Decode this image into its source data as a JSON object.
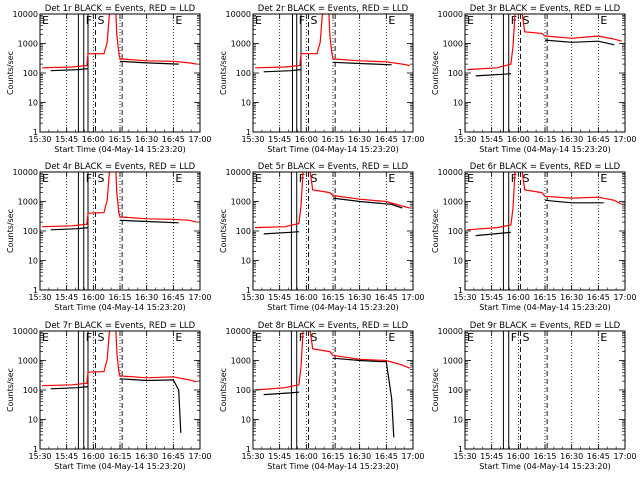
{
  "figure": {
    "x_range": [
      15.5,
      17.0
    ],
    "y_range": [
      1,
      10000
    ],
    "y_scale": "log",
    "x_ticks": [
      {
        "v": 15.5,
        "label": "15:30"
      },
      {
        "v": 15.75,
        "label": "15:45"
      },
      {
        "v": 16.0,
        "label": "16:00"
      },
      {
        "v": 16.25,
        "label": "16:15"
      },
      {
        "v": 16.5,
        "label": "16:30"
      },
      {
        "v": 16.75,
        "label": "16:45"
      },
      {
        "v": 17.0,
        "label": "17:00"
      }
    ],
    "y_ticks": [
      {
        "v": 1,
        "label": "1"
      },
      {
        "v": 10,
        "label": "10"
      },
      {
        "v": 100,
        "label": "100"
      },
      {
        "v": 1000,
        "label": "1000"
      },
      {
        "v": 10000,
        "label": "10000"
      }
    ],
    "ylabel": "Counts/sec",
    "xlabel": "Start Time (04-May-14 15:23:20)",
    "colors": {
      "events": "#000000",
      "lld": "#ff0000"
    }
  },
  "chart_data": [
    {
      "type": "line",
      "title": "Det 1r BLACK = Events, RED = LLD",
      "flags": [
        {
          "t": 15.5,
          "label": "E"
        },
        {
          "t": 15.91,
          "label": "F"
        },
        {
          "t": 16.02,
          "label": "S"
        },
        {
          "t": 16.75,
          "label": "E"
        }
      ],
      "vlines_solid": [
        15.86,
        15.91,
        15.95
      ],
      "vlines_dashed": [
        16.02,
        16.27
      ],
      "vlines_dotted": [
        15.75,
        16.0,
        16.25,
        16.5,
        16.75
      ],
      "series": [
        {
          "kind": "lld",
          "x": [
            15.52,
            15.8,
            15.94,
            15.95,
            16.1,
            16.13,
            16.15,
            16.18,
            16.21,
            16.22,
            16.24,
            16.25,
            16.5,
            16.75,
            16.9,
            16.97
          ],
          "y": [
            150,
            160,
            180,
            450,
            450,
            1100,
            9000,
            15000,
            15000,
            2000,
            450,
            300,
            260,
            250,
            220,
            200
          ]
        },
        {
          "kind": "events",
          "x": [
            15.6,
            15.85,
            15.95
          ],
          "y": [
            120,
            130,
            140
          ]
        },
        {
          "kind": "events",
          "x": [
            16.25,
            16.5,
            16.8
          ],
          "y": [
            250,
            220,
            200
          ]
        }
      ]
    },
    {
      "type": "line",
      "title": "Det 2r BLACK = Events, RED = LLD",
      "flags": [
        {
          "t": 15.5,
          "label": "E"
        },
        {
          "t": 15.91,
          "label": "F"
        },
        {
          "t": 16.02,
          "label": "S"
        },
        {
          "t": 16.75,
          "label": "E"
        }
      ],
      "vlines_solid": [
        15.87,
        15.91,
        15.95
      ],
      "vlines_dashed": [
        16.02,
        16.27
      ],
      "vlines_dotted": [
        15.75,
        16.0,
        16.25,
        16.5,
        16.75
      ],
      "series": [
        {
          "kind": "lld",
          "x": [
            15.52,
            15.8,
            15.94,
            15.95,
            16.1,
            16.13,
            16.15,
            16.18,
            16.21,
            16.22,
            16.24,
            16.25,
            16.5,
            16.75,
            16.9,
            16.97
          ],
          "y": [
            150,
            160,
            180,
            450,
            450,
            1100,
            9000,
            15000,
            15000,
            2000,
            450,
            300,
            260,
            240,
            200,
            180
          ]
        },
        {
          "kind": "events",
          "x": [
            15.6,
            15.85,
            15.95
          ],
          "y": [
            110,
            120,
            130
          ]
        },
        {
          "kind": "events",
          "x": [
            16.25,
            16.5,
            16.8
          ],
          "y": [
            230,
            210,
            190
          ]
        }
      ]
    },
    {
      "type": "line",
      "title": "Det 3r BLACK = Events, RED = LLD",
      "flags": [
        {
          "t": 15.5,
          "label": "E"
        },
        {
          "t": 15.91,
          "label": "F"
        },
        {
          "t": 16.02,
          "label": "S"
        },
        {
          "t": 16.75,
          "label": "E"
        }
      ],
      "vlines_solid": [
        15.86,
        15.91
      ],
      "vlines_dashed": [
        16.02,
        16.27
      ],
      "vlines_dotted": [
        15.75,
        16.0,
        16.25,
        16.5,
        16.75
      ],
      "series": [
        {
          "kind": "lld",
          "x": [
            15.52,
            15.8,
            15.93,
            15.95,
            15.97,
            16.0,
            16.03,
            16.06,
            16.22,
            16.25,
            16.5,
            16.75,
            16.9,
            16.97
          ],
          "y": [
            130,
            150,
            200,
            800,
            12000,
            15000,
            15000,
            2500,
            2200,
            1800,
            1500,
            1800,
            1400,
            1200
          ]
        },
        {
          "kind": "events",
          "x": [
            15.6,
            15.85,
            15.93
          ],
          "y": [
            80,
            90,
            95
          ]
        },
        {
          "kind": "events",
          "x": [
            16.25,
            16.5,
            16.75,
            16.9
          ],
          "y": [
            1300,
            1100,
            1200,
            900
          ]
        }
      ]
    },
    {
      "type": "line",
      "title": "Det 4r BLACK = Events, RED = LLD",
      "flags": [
        {
          "t": 15.5,
          "label": "E"
        },
        {
          "t": 15.91,
          "label": "F"
        },
        {
          "t": 16.02,
          "label": "S"
        },
        {
          "t": 16.75,
          "label": "E"
        }
      ],
      "vlines_solid": [
        15.86,
        15.91,
        15.95
      ],
      "vlines_dashed": [
        16.02,
        16.27
      ],
      "vlines_dotted": [
        15.75,
        16.0,
        16.25,
        16.5,
        16.75
      ],
      "series": [
        {
          "kind": "lld",
          "x": [
            15.52,
            15.8,
            15.94,
            15.95,
            16.1,
            16.13,
            16.15,
            16.18,
            16.21,
            16.22,
            16.24,
            16.25,
            16.5,
            16.75,
            16.9,
            16.97
          ],
          "y": [
            140,
            150,
            170,
            400,
            420,
            1100,
            9000,
            15000,
            15000,
            2000,
            400,
            300,
            260,
            250,
            230,
            200
          ]
        },
        {
          "kind": "events",
          "x": [
            15.6,
            15.85,
            15.95
          ],
          "y": [
            110,
            120,
            130
          ]
        },
        {
          "kind": "events",
          "x": [
            16.25,
            16.5,
            16.8
          ],
          "y": [
            230,
            210,
            190
          ]
        }
      ]
    },
    {
      "type": "line",
      "title": "Det 5r BLACK = Events, RED = LLD",
      "flags": [
        {
          "t": 15.5,
          "label": "E"
        },
        {
          "t": 15.91,
          "label": "F"
        },
        {
          "t": 16.02,
          "label": "S"
        },
        {
          "t": 16.75,
          "label": "E"
        }
      ],
      "vlines_solid": [
        15.86,
        15.91
      ],
      "vlines_dashed": [
        16.02,
        16.27
      ],
      "vlines_dotted": [
        15.75,
        16.0,
        16.25,
        16.5,
        16.75
      ],
      "series": [
        {
          "kind": "lld",
          "x": [
            15.52,
            15.8,
            15.93,
            15.95,
            15.97,
            16.0,
            16.03,
            16.06,
            16.22,
            16.25,
            16.5,
            16.75,
            16.9,
            16.97
          ],
          "y": [
            130,
            140,
            180,
            700,
            12000,
            15000,
            15000,
            2500,
            2000,
            1600,
            1200,
            1000,
            700,
            600
          ]
        },
        {
          "kind": "events",
          "x": [
            15.6,
            15.85,
            15.93
          ],
          "y": [
            80,
            90,
            95
          ]
        },
        {
          "kind": "events",
          "x": [
            16.25,
            16.5,
            16.8,
            16.9
          ],
          "y": [
            1300,
            1000,
            800,
            600
          ]
        }
      ]
    },
    {
      "type": "line",
      "title": "Det 6r BLACK = Events, RED = LLD",
      "flags": [
        {
          "t": 15.5,
          "label": "E"
        },
        {
          "t": 15.91,
          "label": "F"
        },
        {
          "t": 16.02,
          "label": "S"
        },
        {
          "t": 16.75,
          "label": "E"
        }
      ],
      "vlines_solid": [
        15.86,
        15.91
      ],
      "vlines_dashed": [
        16.02,
        16.27
      ],
      "vlines_dotted": [
        15.75,
        16.0,
        16.25,
        16.5,
        16.75
      ],
      "series": [
        {
          "kind": "lld",
          "x": [
            15.52,
            15.8,
            15.93,
            15.95,
            15.97,
            16.0,
            16.03,
            16.06,
            16.22,
            16.25,
            16.5,
            16.75,
            16.9,
            16.97
          ],
          "y": [
            110,
            130,
            160,
            600,
            12000,
            15000,
            15000,
            2500,
            2000,
            1500,
            1300,
            1400,
            1100,
            800
          ]
        },
        {
          "kind": "events",
          "x": [
            15.6,
            15.85,
            15.93
          ],
          "y": [
            70,
            85,
            90
          ]
        },
        {
          "kind": "events",
          "x": [
            16.25,
            16.5,
            16.8
          ],
          "y": [
            1100,
            900,
            900
          ]
        }
      ]
    },
    {
      "type": "line",
      "title": "Det 7r BLACK = Events, RED = LLD",
      "flags": [
        {
          "t": 15.5,
          "label": "E"
        },
        {
          "t": 15.91,
          "label": "F"
        },
        {
          "t": 16.02,
          "label": "S"
        },
        {
          "t": 16.75,
          "label": "E"
        }
      ],
      "vlines_solid": [
        15.86,
        15.91,
        15.95
      ],
      "vlines_dashed": [
        16.02,
        16.27
      ],
      "vlines_dotted": [
        15.75,
        16.0,
        16.25,
        16.5,
        16.75
      ],
      "series": [
        {
          "kind": "lld",
          "x": [
            15.52,
            15.8,
            15.94,
            15.95,
            16.1,
            16.13,
            16.15,
            16.18,
            16.21,
            16.22,
            16.24,
            16.25,
            16.5,
            16.75,
            16.9,
            16.97
          ],
          "y": [
            140,
            150,
            170,
            400,
            420,
            1100,
            9000,
            15000,
            15000,
            2000,
            400,
            300,
            260,
            280,
            220,
            190
          ]
        },
        {
          "kind": "events",
          "x": [
            15.6,
            15.85,
            15.95
          ],
          "y": [
            110,
            120,
            130
          ]
        },
        {
          "kind": "events",
          "x": [
            16.25,
            16.5,
            16.75,
            16.8,
            16.82
          ],
          "y": [
            240,
            210,
            220,
            100,
            3.5
          ]
        }
      ]
    },
    {
      "type": "line",
      "title": "Det 8r BLACK = Events, RED = LLD",
      "flags": [
        {
          "t": 15.5,
          "label": "E"
        },
        {
          "t": 15.91,
          "label": "F"
        },
        {
          "t": 16.02,
          "label": "S"
        },
        {
          "t": 16.75,
          "label": "E"
        }
      ],
      "vlines_solid": [
        15.86,
        15.91
      ],
      "vlines_dashed": [
        16.02,
        16.27
      ],
      "vlines_dotted": [
        15.75,
        16.0,
        16.25,
        16.5,
        16.75
      ],
      "series": [
        {
          "kind": "lld",
          "x": [
            15.52,
            15.8,
            15.93,
            15.95,
            15.97,
            16.0,
            16.03,
            16.06,
            16.22,
            16.25,
            16.5,
            16.75,
            16.9,
            16.97
          ],
          "y": [
            100,
            120,
            150,
            600,
            12000,
            15000,
            15000,
            2500,
            2000,
            1500,
            1100,
            1000,
            700,
            550
          ]
        },
        {
          "kind": "events",
          "x": [
            15.6,
            15.85,
            15.93
          ],
          "y": [
            70,
            80,
            85
          ]
        },
        {
          "kind": "events",
          "x": [
            16.25,
            16.5,
            16.75,
            16.8,
            16.82
          ],
          "y": [
            1200,
            1000,
            900,
            50,
            2.5
          ]
        }
      ]
    },
    {
      "type": "line",
      "title": "Det 9r BLACK = Events, RED = LLD",
      "flags": [
        {
          "t": 15.5,
          "label": "E"
        },
        {
          "t": 15.91,
          "label": "F"
        },
        {
          "t": 16.02,
          "label": "S"
        },
        {
          "t": 16.75,
          "label": "E"
        }
      ],
      "vlines_solid": [
        15.86,
        15.91
      ],
      "vlines_dashed": [
        16.02,
        16.27
      ],
      "vlines_dotted": [
        15.75,
        16.0,
        16.25,
        16.5,
        16.75
      ],
      "series": []
    }
  ]
}
